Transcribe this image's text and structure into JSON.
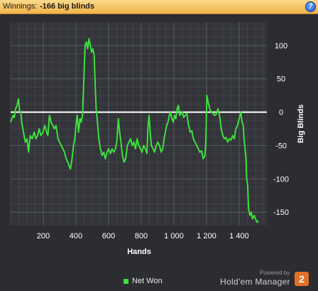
{
  "header": {
    "winnings_label": "Winnings:",
    "winnings_value": "-166 big blinds",
    "help_glyph": "?"
  },
  "legend": {
    "series_label": "Net Won"
  },
  "branding": {
    "powered_by": "Powered by",
    "product": "Hold'em Manager",
    "badge": "2"
  },
  "colors": {
    "line": "#3de03d",
    "zero_line": "#ffffff",
    "plot_bg": "#33353a",
    "grid": "#4a4c50",
    "accent": "#f2b44a"
  },
  "chart_data": {
    "type": "line",
    "xlabel": "Hands",
    "ylabel": "Big Blinds",
    "xlim": [
      0,
      1570
    ],
    "ylim": [
      -170,
      135
    ],
    "xticks": [
      200,
      400,
      600,
      800,
      1000,
      1200,
      1400
    ],
    "xtick_labels": [
      "200",
      "400",
      "600",
      "800",
      "1 000",
      "1 200",
      "1 400"
    ],
    "yticks": [
      100,
      50,
      0,
      -50,
      -100,
      -150
    ],
    "grid": true,
    "series": [
      {
        "name": "Net Won",
        "points": [
          [
            0,
            -15
          ],
          [
            15,
            -5
          ],
          [
            22,
            -8
          ],
          [
            30,
            5
          ],
          [
            40,
            10
          ],
          [
            48,
            20
          ],
          [
            55,
            2
          ],
          [
            62,
            0
          ],
          [
            68,
            -15
          ],
          [
            75,
            -25
          ],
          [
            82,
            -35
          ],
          [
            90,
            -45
          ],
          [
            100,
            -40
          ],
          [
            110,
            -60
          ],
          [
            120,
            -35
          ],
          [
            132,
            -40
          ],
          [
            145,
            -30
          ],
          [
            155,
            -40
          ],
          [
            165,
            -35
          ],
          [
            175,
            -25
          ],
          [
            185,
            -35
          ],
          [
            198,
            -30
          ],
          [
            210,
            -20
          ],
          [
            220,
            -30
          ],
          [
            228,
            -35
          ],
          [
            238,
            -5
          ],
          [
            248,
            -15
          ],
          [
            258,
            -20
          ],
          [
            268,
            -25
          ],
          [
            278,
            -20
          ],
          [
            290,
            -40
          ],
          [
            300,
            -45
          ],
          [
            310,
            -50
          ],
          [
            320,
            -55
          ],
          [
            330,
            -60
          ],
          [
            340,
            -70
          ],
          [
            350,
            -75
          ],
          [
            358,
            -80
          ],
          [
            366,
            -85
          ],
          [
            376,
            -70
          ],
          [
            385,
            -50
          ],
          [
            393,
            -40
          ],
          [
            400,
            -20
          ],
          [
            408,
            -5
          ],
          [
            416,
            -30
          ],
          [
            425,
            -10
          ],
          [
            432,
            -15
          ],
          [
            440,
            -5
          ],
          [
            448,
            45
          ],
          [
            456,
            100
          ],
          [
            464,
            105
          ],
          [
            472,
            95
          ],
          [
            480,
            110
          ],
          [
            488,
            100
          ],
          [
            496,
            90
          ],
          [
            504,
            95
          ],
          [
            512,
            85
          ],
          [
            518,
            40
          ],
          [
            524,
            5
          ],
          [
            532,
            -15
          ],
          [
            540,
            -40
          ],
          [
            550,
            -55
          ],
          [
            560,
            -65
          ],
          [
            570,
            -60
          ],
          [
            580,
            -70
          ],
          [
            590,
            -60
          ],
          [
            600,
            -55
          ],
          [
            612,
            -62
          ],
          [
            622,
            -55
          ],
          [
            632,
            -60
          ],
          [
            642,
            -55
          ],
          [
            650,
            -45
          ],
          [
            660,
            -10
          ],
          [
            668,
            -30
          ],
          [
            676,
            -45
          ],
          [
            685,
            -65
          ],
          [
            695,
            -75
          ],
          [
            705,
            -70
          ],
          [
            715,
            -50
          ],
          [
            725,
            -45
          ],
          [
            735,
            -40
          ],
          [
            745,
            -50
          ],
          [
            755,
            -45
          ],
          [
            765,
            -55
          ],
          [
            775,
            -40
          ],
          [
            785,
            -50
          ],
          [
            795,
            -55
          ],
          [
            805,
            -60
          ],
          [
            815,
            -50
          ],
          [
            825,
            -55
          ],
          [
            835,
            -62
          ],
          [
            842,
            -20
          ],
          [
            848,
            -5
          ],
          [
            855,
            -30
          ],
          [
            862,
            -50
          ],
          [
            872,
            -55
          ],
          [
            882,
            -60
          ],
          [
            892,
            -50
          ],
          [
            902,
            -45
          ],
          [
            912,
            -50
          ],
          [
            922,
            -60
          ],
          [
            932,
            -55
          ],
          [
            940,
            -40
          ],
          [
            948,
            -30
          ],
          [
            956,
            -20
          ],
          [
            964,
            -15
          ],
          [
            972,
            -5
          ],
          [
            980,
            0
          ],
          [
            988,
            -10
          ],
          [
            996,
            -15
          ],
          [
            1004,
            -5
          ],
          [
            1012,
            -10
          ],
          [
            1020,
            5
          ],
          [
            1028,
            10
          ],
          [
            1036,
            -5
          ],
          [
            1044,
            -2
          ],
          [
            1052,
            0
          ],
          [
            1060,
            -8
          ],
          [
            1070,
            -5
          ],
          [
            1080,
            -2
          ],
          [
            1090,
            -20
          ],
          [
            1100,
            -30
          ],
          [
            1110,
            -28
          ],
          [
            1120,
            -40
          ],
          [
            1130,
            -45
          ],
          [
            1140,
            -50
          ],
          [
            1150,
            -55
          ],
          [
            1160,
            -60
          ],
          [
            1170,
            -58
          ],
          [
            1180,
            -70
          ],
          [
            1190,
            -65
          ],
          [
            1196,
            -45
          ],
          [
            1202,
            25
          ],
          [
            1210,
            15
          ],
          [
            1220,
            5
          ],
          [
            1230,
            0
          ],
          [
            1240,
            -2
          ],
          [
            1250,
            -5
          ],
          [
            1260,
            -3
          ],
          [
            1270,
            5
          ],
          [
            1280,
            -5
          ],
          [
            1290,
            -25
          ],
          [
            1300,
            -35
          ],
          [
            1310,
            -40
          ],
          [
            1320,
            -38
          ],
          [
            1330,
            -45
          ],
          [
            1340,
            -40
          ],
          [
            1350,
            -42
          ],
          [
            1360,
            -35
          ],
          [
            1370,
            -40
          ],
          [
            1380,
            -25
          ],
          [
            1390,
            -20
          ],
          [
            1400,
            -10
          ],
          [
            1410,
            0
          ],
          [
            1418,
            -15
          ],
          [
            1425,
            -20
          ],
          [
            1430,
            -40
          ],
          [
            1436,
            -55
          ],
          [
            1442,
            -70
          ],
          [
            1446,
            -100
          ],
          [
            1452,
            -110
          ],
          [
            1458,
            -145
          ],
          [
            1466,
            -155
          ],
          [
            1474,
            -150
          ],
          [
            1482,
            -160
          ],
          [
            1492,
            -155
          ],
          [
            1500,
            -160
          ],
          [
            1510,
            -165
          ],
          [
            1518,
            -163
          ]
        ]
      }
    ]
  }
}
